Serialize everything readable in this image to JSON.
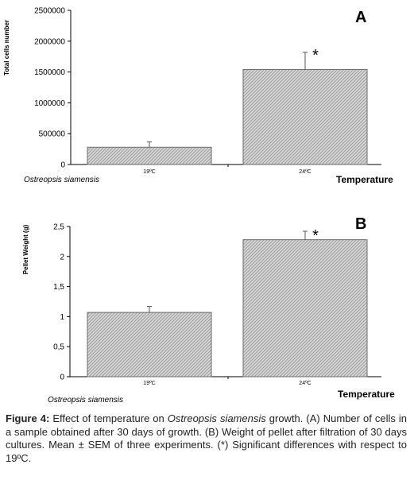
{
  "chart_data": [
    {
      "type": "bar",
      "panel_label": "A",
      "categories": [
        "19ºC",
        "24ºC"
      ],
      "values": [
        280000,
        1540000
      ],
      "errors": [
        85000,
        280000
      ],
      "significance": [
        "",
        "*"
      ],
      "ylabel": "Total cells number",
      "xlabel": "Temperature",
      "species_label": "Ostreopsis siamensis",
      "ylim": [
        0,
        2500000
      ],
      "yticks": [
        0,
        500000,
        1000000,
        1500000,
        2000000,
        2500000
      ],
      "ytick_labels": [
        "0",
        "500000",
        "1000000",
        "1500000",
        "2000000",
        "2500000"
      ],
      "bar_pattern": "hatched-gray",
      "grid": false
    },
    {
      "type": "bar",
      "panel_label": "B",
      "categories": [
        "19ºC",
        "24ºC"
      ],
      "values": [
        1.07,
        2.28
      ],
      "errors": [
        0.1,
        0.14
      ],
      "significance": [
        "",
        "*"
      ],
      "ylabel": "Pellet Weight (g)",
      "xlabel": "Temperature",
      "species_label": "Ostreopsis siamensis",
      "ylim": [
        0,
        2.5
      ],
      "yticks": [
        0,
        0.5,
        1,
        1.5,
        2,
        2.5
      ],
      "ytick_labels": [
        "0",
        "0,5",
        "1",
        "1,5",
        "2",
        "2,5"
      ],
      "bar_pattern": "hatched-gray",
      "grid": false
    }
  ],
  "caption": {
    "label": "Figure 4:",
    "text_1": " Effect of temperature on ",
    "species": "Ostreopsis siamensis",
    "text_2": " growth. (A) Number of cells in a sample obtained after 30 days of growth. (B) Weight of pellet after filtration of 30 days cultures. Mean ± SEM of three experiments. (*) Significant differences with respect to 19ºC."
  }
}
